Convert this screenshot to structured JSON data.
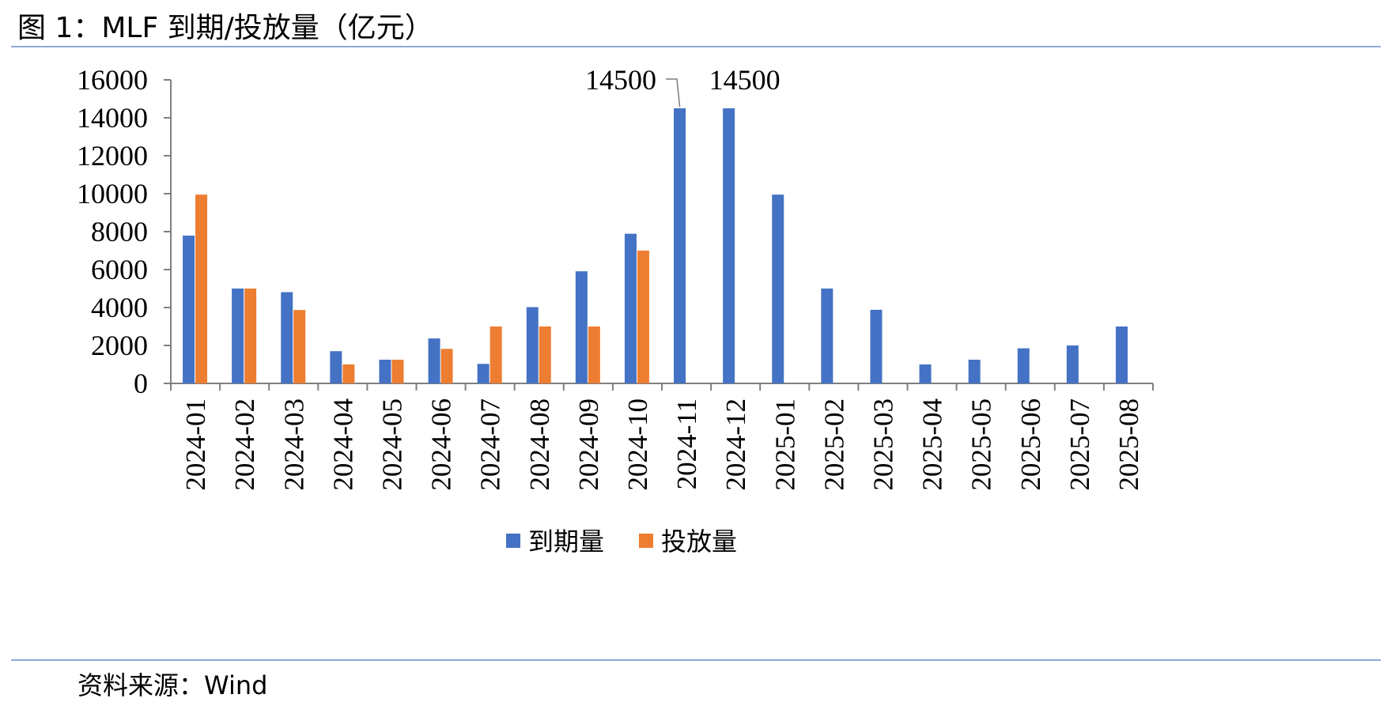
{
  "figure": {
    "title": "图 1：MLF 到期/投放量（亿元）",
    "source": "资料来源：Wind"
  },
  "chart_data": {
    "type": "bar",
    "categories": [
      "2024-01",
      "2024-02",
      "2024-03",
      "2024-04",
      "2024-05",
      "2024-06",
      "2024-07",
      "2024-08",
      "2024-09",
      "2024-10",
      "2024-11",
      "2024-12",
      "2025-01",
      "2025-02",
      "2025-03",
      "2025-04",
      "2025-05",
      "2025-06",
      "2025-07",
      "2025-08"
    ],
    "series": [
      {
        "name": "到期量",
        "color": "#4472c4",
        "values": [
          7790,
          5000,
          4810,
          1700,
          1250,
          2370,
          1030,
          4020,
          5910,
          7890,
          14500,
          14500,
          9950,
          5000,
          3880,
          1000,
          1250,
          1850,
          2000,
          3000
        ]
      },
      {
        "name": "投放量",
        "color": "#ed7d31",
        "values": [
          9950,
          5000,
          3870,
          1000,
          1250,
          1820,
          3000,
          3000,
          3000,
          7000,
          null,
          null,
          null,
          null,
          null,
          null,
          null,
          null,
          null,
          null
        ]
      }
    ],
    "ylim": [
      0,
      16000
    ],
    "yticks": [
      0,
      2000,
      4000,
      6000,
      8000,
      10000,
      12000,
      14000,
      16000
    ],
    "data_labels": [
      {
        "series": "到期量",
        "category": "2024-11",
        "text": "14500"
      },
      {
        "series": "到期量",
        "category": "2024-12",
        "text": "14500"
      }
    ],
    "legend_position": "bottom",
    "grid": false
  }
}
